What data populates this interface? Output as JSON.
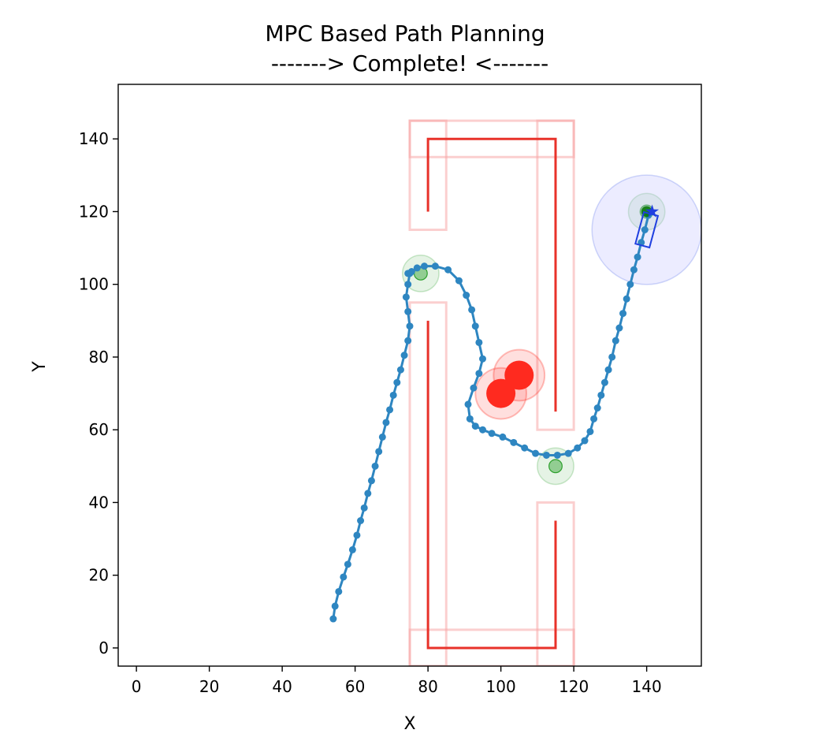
{
  "chart_data": {
    "type": "scatter",
    "title": "MPC Based Path Planning",
    "subtitle": "------->  Complete!  <-------",
    "xlabel": "X",
    "ylabel": "Y",
    "xlim": [
      -5,
      155
    ],
    "ylim": [
      -5,
      155
    ],
    "xticks": [
      0,
      20,
      40,
      60,
      80,
      100,
      120,
      140
    ],
    "yticks": [
      0,
      20,
      40,
      60,
      80,
      100,
      120,
      140
    ],
    "grid": false,
    "colors": {
      "trajectory": "#2e86c1",
      "wall": "#e8322a",
      "wall_margin": "#f7a8a8",
      "obstacle": "#ff2a1f",
      "waypoint": "#2ca02c",
      "vehicle": "#1f3fe0",
      "vehicle_zone": "#c8c8ff"
    },
    "walls": [
      [
        [
          80,
          120
        ],
        [
          80,
          140
        ],
        [
          115,
          140
        ],
        [
          115,
          65
        ]
      ],
      [
        [
          80,
          90
        ],
        [
          80,
          0
        ],
        [
          115,
          0
        ],
        [
          115,
          35
        ]
      ]
    ],
    "wall_margins": [
      [
        75,
        115,
        85,
        145
      ],
      [
        110,
        60,
        120,
        145
      ],
      [
        75,
        135,
        120,
        145
      ],
      [
        75,
        -5,
        85,
        95
      ],
      [
        110,
        -5,
        120,
        40
      ],
      [
        75,
        -5,
        120,
        5
      ]
    ],
    "obstacles": [
      {
        "x": 100,
        "y": 70
      },
      {
        "x": 105,
        "y": 75
      }
    ],
    "waypoints": [
      {
        "x": 78,
        "y": 103
      },
      {
        "x": 115,
        "y": 50
      },
      {
        "x": 140,
        "y": 120
      }
    ],
    "trajectory": {
      "x": [
        54,
        54.5,
        55.5,
        56.8,
        58,
        59.3,
        60.5,
        61.5,
        62.5,
        63.5,
        64.5,
        65.5,
        66.5,
        67.5,
        68.5,
        69.5,
        70.5,
        71.5,
        72.5,
        73.5,
        74.5,
        75,
        74.5,
        74,
        74.5,
        75,
        74.5,
        75.5,
        77,
        79,
        82,
        85.5,
        88.5,
        90.5,
        92,
        93,
        94,
        95,
        94,
        92.5,
        91,
        91.5,
        93,
        95,
        97.5,
        100.5,
        103.5,
        106.5,
        109.5,
        112.5,
        115.5,
        118.5,
        121,
        123,
        124.5,
        125.5,
        126.5,
        127.5,
        128.5,
        129.5,
        130.5,
        131.5,
        132.5,
        133.5,
        134.5,
        135.5,
        136.5,
        137.5,
        138.5,
        139.5,
        140.5
      ],
      "y": [
        8,
        11.5,
        15.5,
        19.5,
        23,
        27,
        31,
        35,
        38.5,
        42.5,
        46,
        50,
        54,
        58,
        62,
        65.5,
        69.5,
        73,
        76.5,
        80.5,
        84.5,
        88.5,
        92.5,
        96.5,
        100,
        103,
        103,
        103.5,
        104.5,
        105,
        105,
        104,
        101,
        97,
        93,
        88.5,
        84,
        79.5,
        75.5,
        71.5,
        67,
        63,
        61,
        60,
        59,
        58,
        56.5,
        55,
        53.5,
        53,
        53,
        53.5,
        55,
        57,
        59.5,
        63,
        66,
        69.5,
        73,
        76.5,
        80,
        84.5,
        88,
        92,
        96,
        100,
        104,
        107.5,
        111.5,
        115,
        119
      ]
    },
    "vehicle": {
      "x": 140,
      "y": 115,
      "heading_deg": 75,
      "length": 9,
      "width": 4,
      "safety_radius": 15
    },
    "goal_marker": {
      "x": 141.5,
      "y": 120
    }
  }
}
